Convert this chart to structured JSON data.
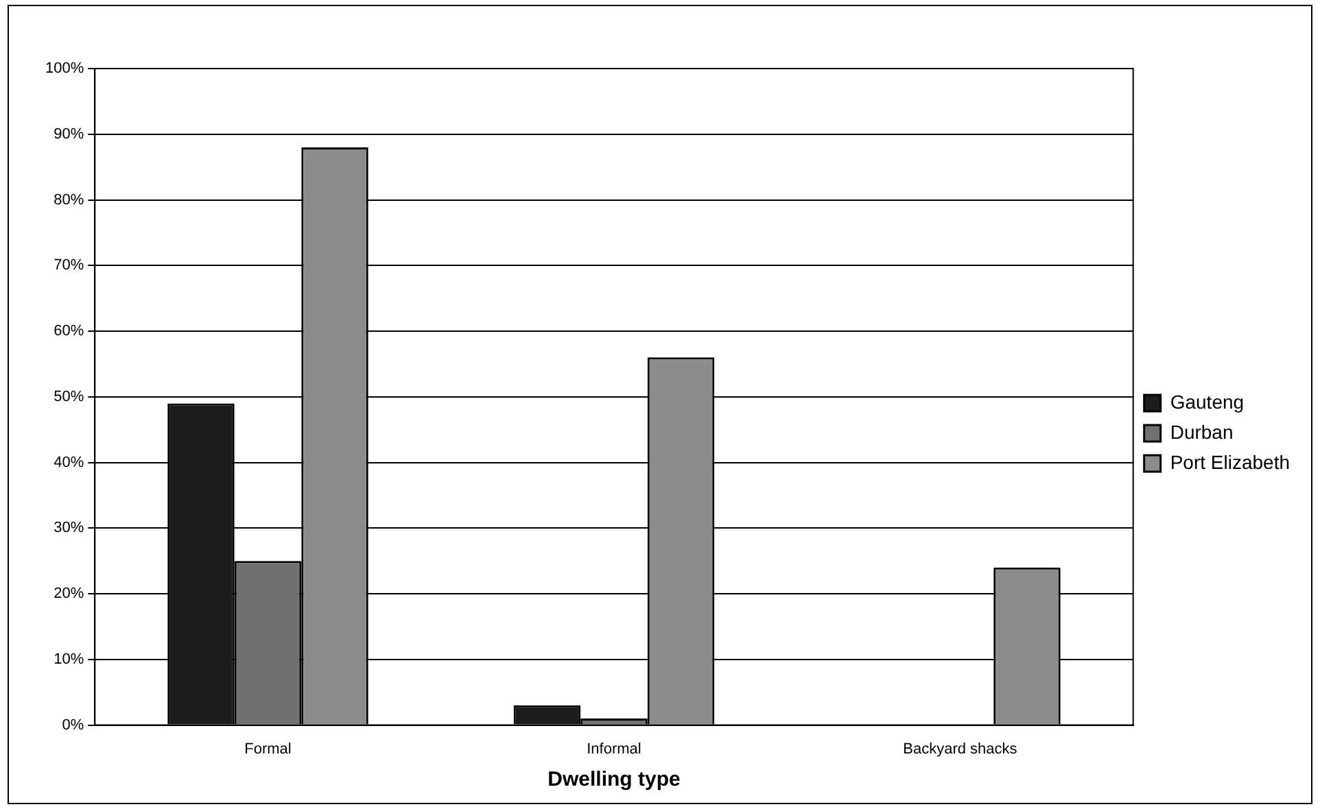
{
  "chart_data": {
    "type": "bar",
    "xlabel": "Dwelling type",
    "categories": [
      "Formal",
      "Informal",
      "Backyard shacks"
    ],
    "series": [
      {
        "name": "Gauteng",
        "color": "#1c1c1c",
        "values": [
          49,
          3,
          0
        ]
      },
      {
        "name": "Durban",
        "color": "#707070",
        "values": [
          25,
          1,
          0
        ]
      },
      {
        "name": "Port Elizabeth",
        "color": "#8c8c8c",
        "values": [
          88,
          56,
          24
        ]
      }
    ],
    "ylim": [
      0,
      100
    ],
    "yticks": [
      {
        "value": 0,
        "label": "0%"
      },
      {
        "value": 10,
        "label": "10%"
      },
      {
        "value": 20,
        "label": "20%"
      },
      {
        "value": 30,
        "label": "30%"
      },
      {
        "value": 40,
        "label": "40%"
      },
      {
        "value": 50,
        "label": "50%"
      },
      {
        "value": 60,
        "label": "60%"
      },
      {
        "value": 70,
        "label": "70%"
      },
      {
        "value": 80,
        "label": "80%"
      },
      {
        "value": 90,
        "label": "90%"
      },
      {
        "value": 100,
        "label": "100%"
      }
    ],
    "grid": "y",
    "legend": "right"
  }
}
